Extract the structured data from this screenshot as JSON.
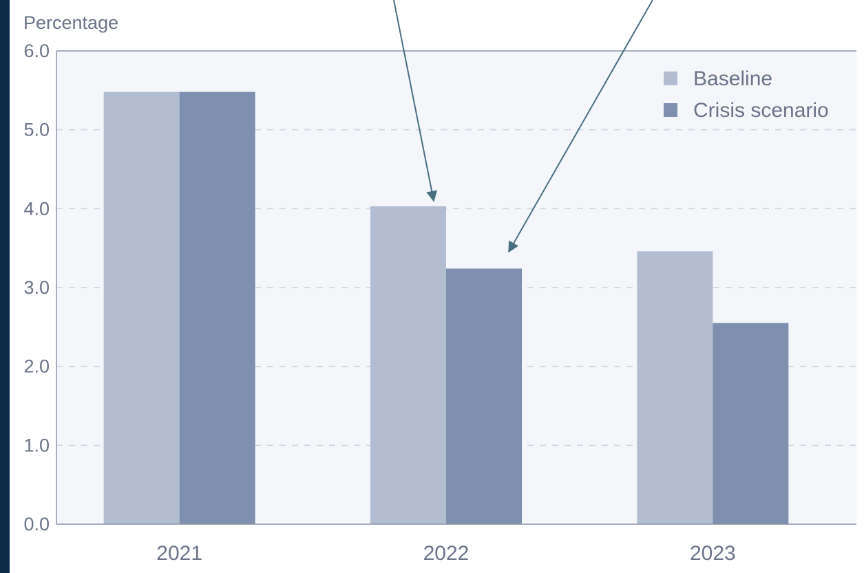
{
  "chart_data": {
    "type": "bar",
    "ylabel": "Percentage",
    "categories": [
      "2021",
      "2022",
      "2023"
    ],
    "series": [
      {
        "name": "Baseline",
        "color": "#b3bdd1",
        "values": [
          5.48,
          4.03,
          3.46
        ]
      },
      {
        "name": "Crisis scenario",
        "color": "#7e8fb0",
        "values": [
          5.48,
          3.24,
          2.55
        ]
      }
    ],
    "ylim": [
      0,
      6
    ],
    "yticks": [
      "0.0",
      "1.0",
      "2.0",
      "3.0",
      "4.0",
      "5.0",
      "6.0"
    ],
    "grid": true,
    "legend": "top-right",
    "annotation_arrows": 2
  },
  "colors": {
    "plot_background": "#f4f6f9",
    "axis": "#8a94a8",
    "grid": "#cdd3de",
    "text": "#6b7488",
    "arrow": "#4a6f82",
    "outer_background": "#0b2a47"
  }
}
